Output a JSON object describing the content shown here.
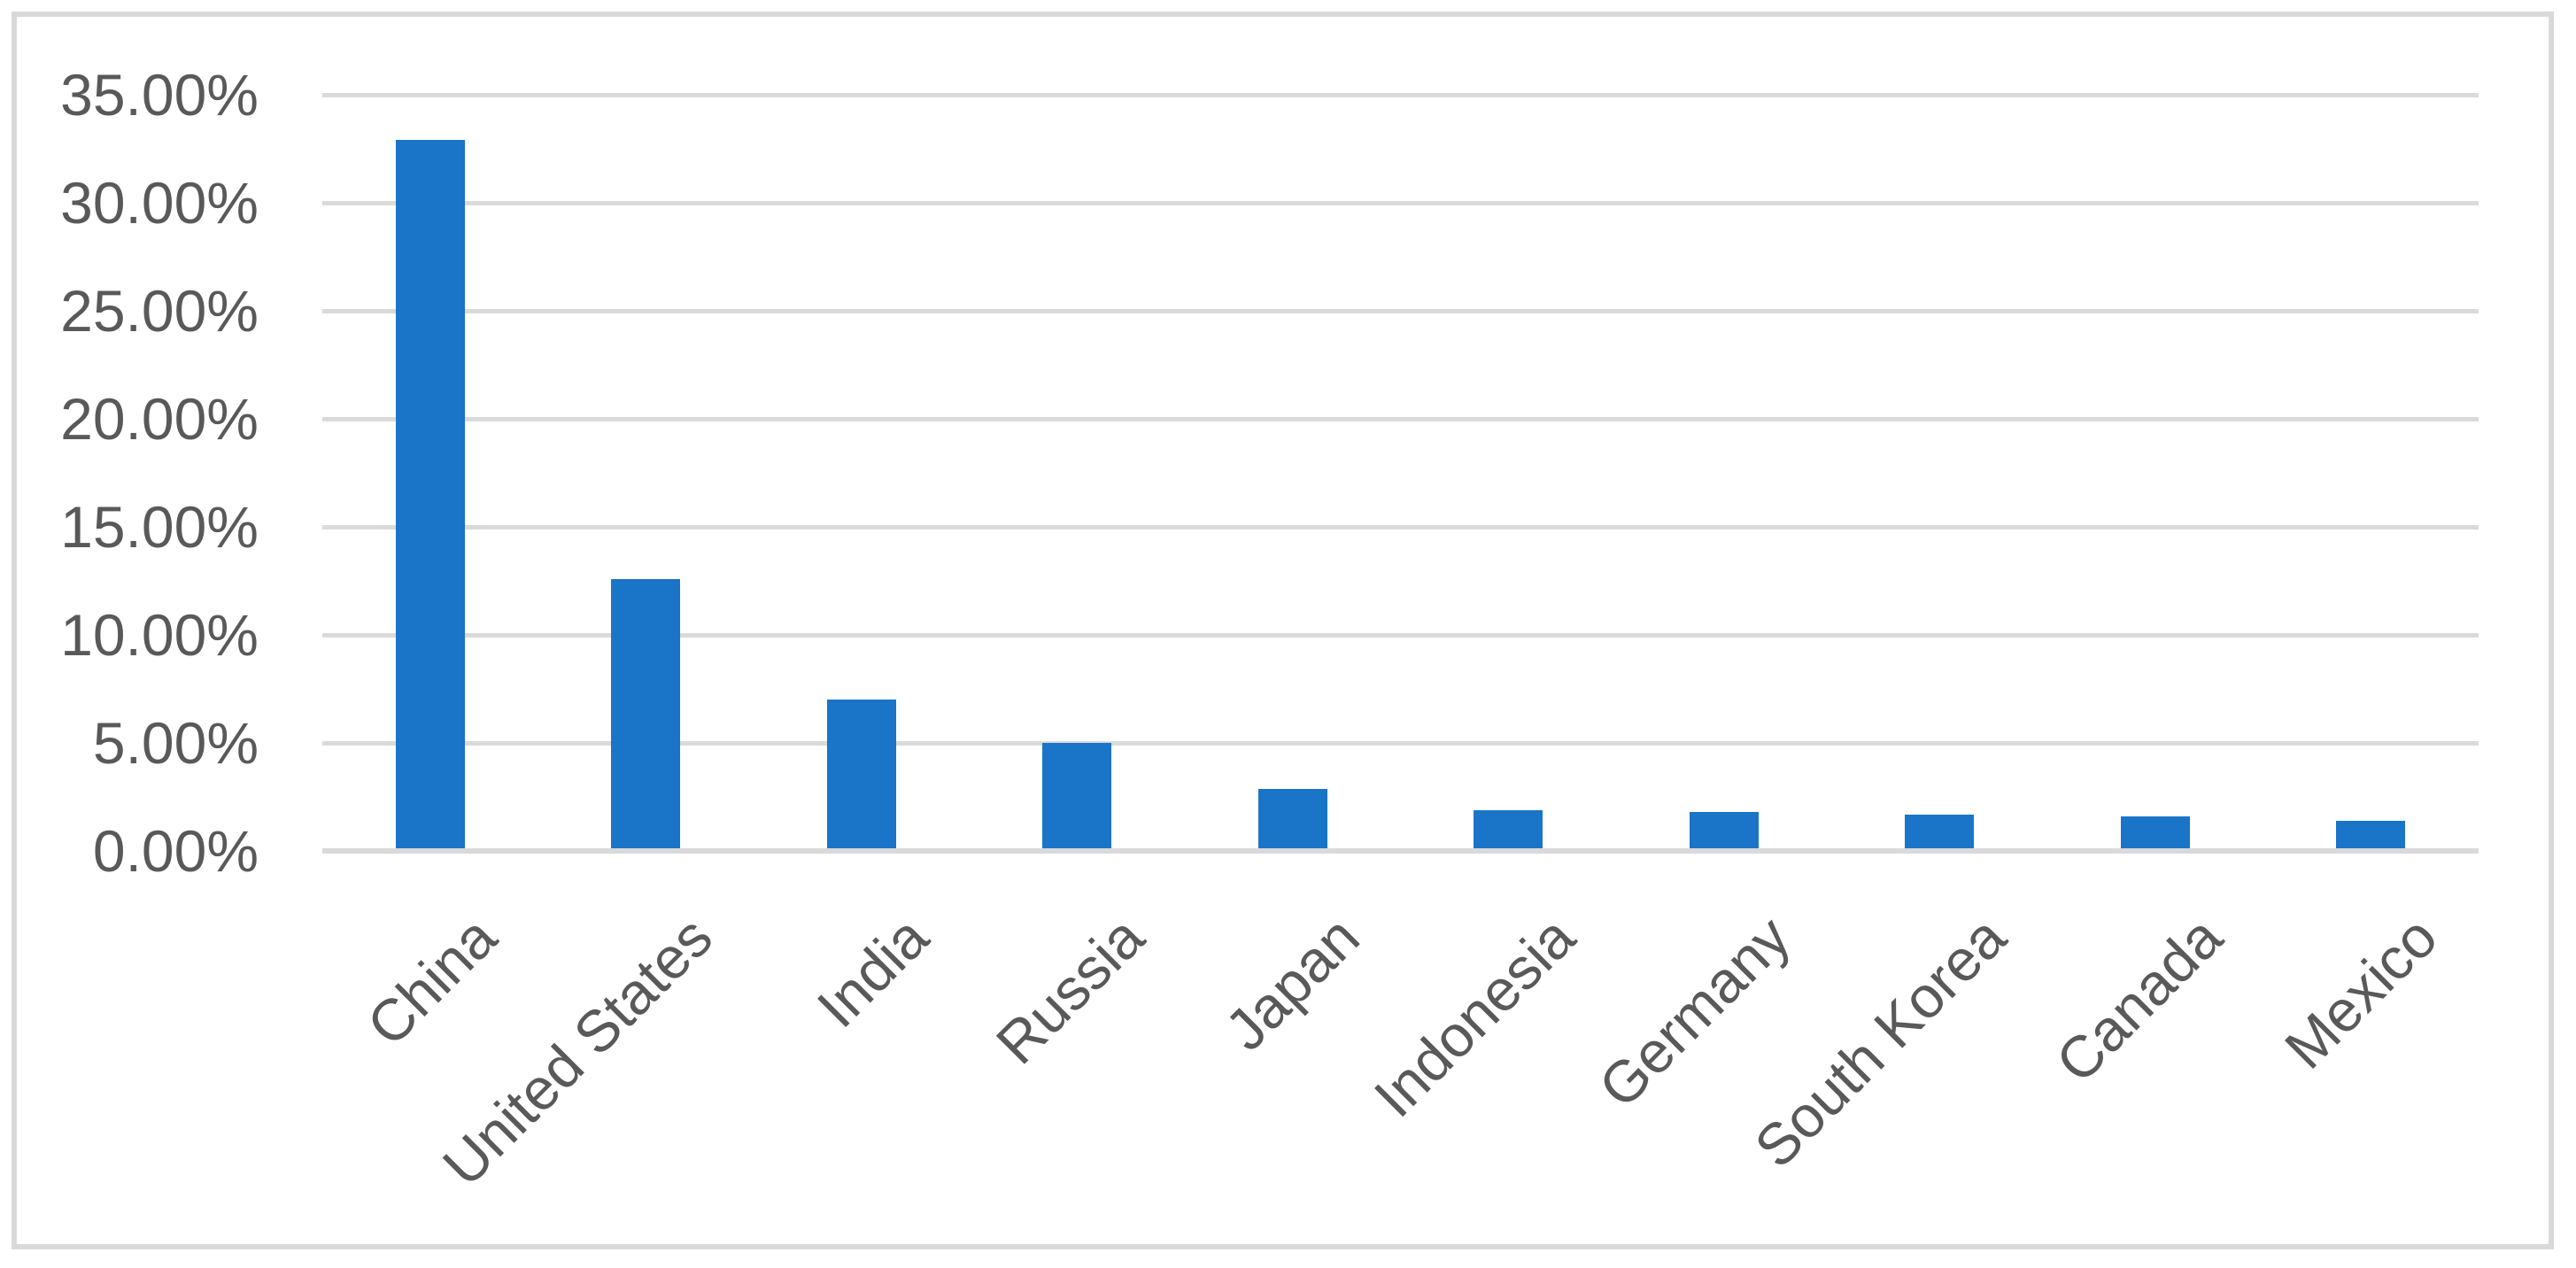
{
  "chart_data": {
    "type": "bar",
    "title": "",
    "xlabel": "",
    "ylabel": "",
    "categories": [
      "China",
      "United States",
      "India",
      "Russia",
      "Japan",
      "Indonesia",
      "Germany",
      "South Korea",
      "Canada",
      "Mexico"
    ],
    "values": [
      32.9,
      12.6,
      7.0,
      5.0,
      2.85,
      1.9,
      1.8,
      1.7,
      1.6,
      1.4
    ],
    "series_name": "",
    "legend": "none",
    "grid": "horizontal",
    "y_axis": {
      "min": 0,
      "max": 35,
      "step": 5,
      "format": "0.00%",
      "tick_labels": [
        "35.00%",
        "30.00%",
        "25.00%",
        "20.00%",
        "15.00%",
        "10.00%",
        "5.00%",
        "0.00%"
      ]
    },
    "x_axis": {
      "label_rotation_deg": 45
    },
    "colors": {
      "bar": "#1A74C8",
      "gridline": "#DADADA",
      "axis_line": "#D9D9D9",
      "tick_text": "#595959",
      "frame_border": "#D9D9D9",
      "background": "#FFFFFF"
    }
  }
}
